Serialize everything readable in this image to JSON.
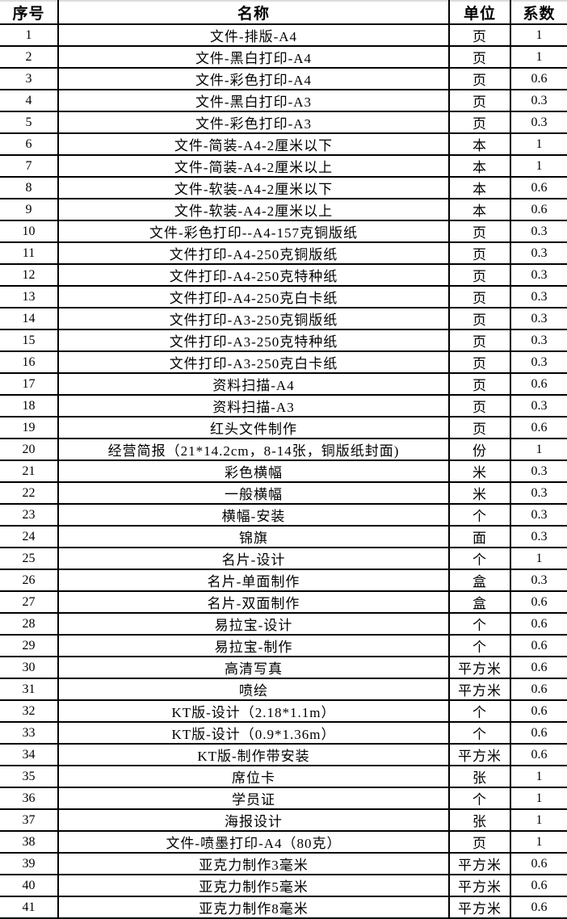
{
  "colors": {
    "background": "#ffffff",
    "grid_line": "#000000",
    "top_edge_line": "#dcdcdc",
    "text": "#000000"
  },
  "table": {
    "headers": {
      "no": "序号",
      "name": "名称",
      "unit": "单位",
      "coef": "系数"
    },
    "rows": [
      {
        "no": "1",
        "name": "文件-排版-A4",
        "unit": "页",
        "coef": "1"
      },
      {
        "no": "2",
        "name": "文件-黑白打印-A4",
        "unit": "页",
        "coef": "1"
      },
      {
        "no": "3",
        "name": "文件-彩色打印-A4",
        "unit": "页",
        "coef": "0.6"
      },
      {
        "no": "4",
        "name": "文件-黑白打印-A3",
        "unit": "页",
        "coef": "0.3"
      },
      {
        "no": "5",
        "name": "文件-彩色打印-A3",
        "unit": "页",
        "coef": "0.3"
      },
      {
        "no": "6",
        "name": "文件-简装-A4-2厘米以下",
        "unit": "本",
        "coef": "1"
      },
      {
        "no": "7",
        "name": "文件-简装-A4-2厘米以上",
        "unit": "本",
        "coef": "1"
      },
      {
        "no": "8",
        "name": "文件-软装-A4-2厘米以下",
        "unit": "本",
        "coef": "0.6"
      },
      {
        "no": "9",
        "name": "文件-软装-A4-2厘米以上",
        "unit": "本",
        "coef": "0.6"
      },
      {
        "no": "10",
        "name": "文件-彩色打印--A4-157克铜版纸",
        "unit": "页",
        "coef": "0.3"
      },
      {
        "no": "11",
        "name": "文件打印-A4-250克铜版纸",
        "unit": "页",
        "coef": "0.3"
      },
      {
        "no": "12",
        "name": "文件打印-A4-250克特种纸",
        "unit": "页",
        "coef": "0.3"
      },
      {
        "no": "13",
        "name": "文件打印-A4-250克白卡纸",
        "unit": "页",
        "coef": "0.3"
      },
      {
        "no": "14",
        "name": "文件打印-A3-250克铜版纸",
        "unit": "页",
        "coef": "0.3"
      },
      {
        "no": "15",
        "name": "文件打印-A3-250克特种纸",
        "unit": "页",
        "coef": "0.3"
      },
      {
        "no": "16",
        "name": "文件打印-A3-250克白卡纸",
        "unit": "页",
        "coef": "0.3"
      },
      {
        "no": "17",
        "name": "资料扫描-A4",
        "unit": "页",
        "coef": "0.6"
      },
      {
        "no": "18",
        "name": "资料扫描-A3",
        "unit": "页",
        "coef": "0.3"
      },
      {
        "no": "19",
        "name": "红头文件制作",
        "unit": "页",
        "coef": "0.6"
      },
      {
        "no": "20",
        "name": "经营简报（21*14.2cm，8-14张，铜版纸封面)",
        "unit": "份",
        "coef": "1"
      },
      {
        "no": "21",
        "name": "彩色横幅",
        "unit": "米",
        "coef": "0.3"
      },
      {
        "no": "22",
        "name": "一般横幅",
        "unit": "米",
        "coef": "0.3"
      },
      {
        "no": "23",
        "name": "横幅-安装",
        "unit": "个",
        "coef": "0.3"
      },
      {
        "no": "24",
        "name": "锦旗",
        "unit": "面",
        "coef": "0.3"
      },
      {
        "no": "25",
        "name": "名片-设计",
        "unit": "个",
        "coef": "1"
      },
      {
        "no": "26",
        "name": "名片-单面制作",
        "unit": "盒",
        "coef": "0.3"
      },
      {
        "no": "27",
        "name": "名片-双面制作",
        "unit": "盒",
        "coef": "0.6"
      },
      {
        "no": "28",
        "name": "易拉宝-设计",
        "unit": "个",
        "coef": "0.6"
      },
      {
        "no": "29",
        "name": "易拉宝-制作",
        "unit": "个",
        "coef": "0.6"
      },
      {
        "no": "30",
        "name": "高清写真",
        "unit": "平方米",
        "coef": "0.6"
      },
      {
        "no": "31",
        "name": "喷绘",
        "unit": "平方米",
        "coef": "0.6"
      },
      {
        "no": "32",
        "name": "KT版-设计（2.18*1.1m）",
        "unit": "个",
        "coef": "0.6"
      },
      {
        "no": "33",
        "name": "KT版-设计（0.9*1.36m）",
        "unit": "个",
        "coef": "0.6"
      },
      {
        "no": "34",
        "name": "KT版-制作带安装",
        "unit": "平方米",
        "coef": "0.6"
      },
      {
        "no": "35",
        "name": "席位卡",
        "unit": "张",
        "coef": "1"
      },
      {
        "no": "36",
        "name": "学员证",
        "unit": "个",
        "coef": "1"
      },
      {
        "no": "37",
        "name": "海报设计",
        "unit": "张",
        "coef": "1"
      },
      {
        "no": "38",
        "name": "文件-喷墨打印-A4（80克）",
        "unit": "页",
        "coef": "1"
      },
      {
        "no": "39",
        "name": "亚克力制作3毫米",
        "unit": "平方米",
        "coef": "0.6"
      },
      {
        "no": "40",
        "name": "亚克力制作5毫米",
        "unit": "平方米",
        "coef": "0.6"
      },
      {
        "no": "41",
        "name": "亚克力制作8毫米",
        "unit": "平方米",
        "coef": "0.6"
      }
    ]
  }
}
